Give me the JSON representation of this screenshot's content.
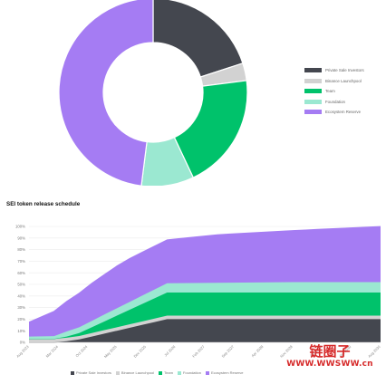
{
  "colors": {
    "private_sale": "#44474f",
    "binance": "#d2d2d2",
    "team": "#00c26b",
    "foundation": "#9be8d1",
    "ecosystem": "#a57cf3"
  },
  "chart_data": [
    {
      "type": "pie",
      "variant": "donut",
      "title": "",
      "series": [
        {
          "name": "Private Sale Investors",
          "value": 20,
          "color": "#44474f"
        },
        {
          "name": "Binance Launchpool",
          "value": 3,
          "color": "#d2d2d2"
        },
        {
          "name": "Team",
          "value": 20,
          "color": "#00c26b"
        },
        {
          "name": "Foundation",
          "value": 9,
          "color": "#9be8d1"
        },
        {
          "name": "Ecosystem Reserve",
          "value": 48,
          "color": "#a57cf3"
        }
      ],
      "legend_position": "right"
    },
    {
      "type": "area",
      "stacked": true,
      "title": "SEI token release schedule",
      "x": [
        "Aug 2023",
        "Nov 2023",
        "Feb 2024",
        "May 2024",
        "Aug 2024",
        "Nov 2024",
        "Feb 2025",
        "May 2025",
        "Aug 2025",
        "Nov 2025",
        "Feb 2026",
        "May 2026",
        "Aug 2026",
        "Nov 2026",
        "Feb 2027",
        "May 2027",
        "Aug 2027",
        "Nov 2027",
        "Feb 2028",
        "May 2028",
        "Aug 2028",
        "Nov 2028",
        "Feb 2029",
        "May 2029",
        "Aug 2029",
        "Nov 2029",
        "Feb 2030",
        "May 2030",
        "Aug 2030"
      ],
      "x_tick_labels": [
        "Aug 2023",
        "Mar 2024",
        "Oct 2024",
        "May 2025",
        "Dec 2025",
        "Jul 2026",
        "Feb 2027",
        "Sep 2027",
        "Apr 2028",
        "Nov 2028",
        "Jun 2029",
        "Jan 2030",
        "Aug 2030"
      ],
      "y_tick_labels": [
        "0%",
        "10%",
        "20%",
        "30%",
        "40%",
        "50%",
        "60%",
        "70%",
        "80%",
        "90%",
        "100%"
      ],
      "ylim": [
        0,
        100
      ],
      "grid": true,
      "legend_position": "bottom",
      "series": [
        {
          "name": "Private Sale Investors",
          "color": "#44474f",
          "values": [
            0,
            0,
            0,
            1,
            2.5,
            5,
            7.5,
            10,
            12.5,
            15,
            17.5,
            20,
            20,
            20,
            20,
            20,
            20,
            20,
            20,
            20,
            20,
            20,
            20,
            20,
            20,
            20,
            20,
            20,
            20
          ]
        },
        {
          "name": "Binance Launchpool",
          "color": "#d2d2d2",
          "values": [
            3,
            3,
            3,
            3,
            3,
            3,
            3,
            3,
            3,
            3,
            3,
            3,
            3,
            3,
            3,
            3,
            3,
            3,
            3,
            3,
            3,
            3,
            3,
            3,
            3,
            3,
            3,
            3,
            3
          ]
        },
        {
          "name": "Team",
          "color": "#00c26b",
          "values": [
            0,
            0,
            0,
            1,
            2.5,
            5,
            7.5,
            10,
            12.5,
            15,
            17.5,
            20,
            20,
            20,
            20,
            20,
            20,
            20,
            20,
            20,
            20,
            20,
            20,
            20,
            20,
            20,
            20,
            20,
            20
          ]
        },
        {
          "name": "Foundation",
          "color": "#9be8d1",
          "values": [
            2,
            2.2,
            2.4,
            4.4,
            5,
            5.5,
            6,
            6.4,
            6.8,
            7.2,
            7.6,
            8,
            8.1,
            8.2,
            8.3,
            8.4,
            8.5,
            8.6,
            8.7,
            8.8,
            8.9,
            9,
            9,
            9,
            9,
            9,
            9,
            9,
            9
          ]
        },
        {
          "name": "Ecosystem Reserve",
          "color": "#a57cf3",
          "values": [
            12.5,
            17,
            21.5,
            26,
            29.5,
            32.5,
            34.5,
            36.5,
            37.5,
            37.5,
            37.5,
            37.5,
            38.5,
            39.5,
            40.5,
            41.5,
            42,
            42.5,
            43,
            43.5,
            44,
            44.5,
            45,
            45.5,
            46,
            46.5,
            47,
            47.5,
            48
          ]
        }
      ]
    }
  ],
  "watermark": {
    "cn": "链圈子",
    "url": "WWW.WWSWW.cn"
  }
}
